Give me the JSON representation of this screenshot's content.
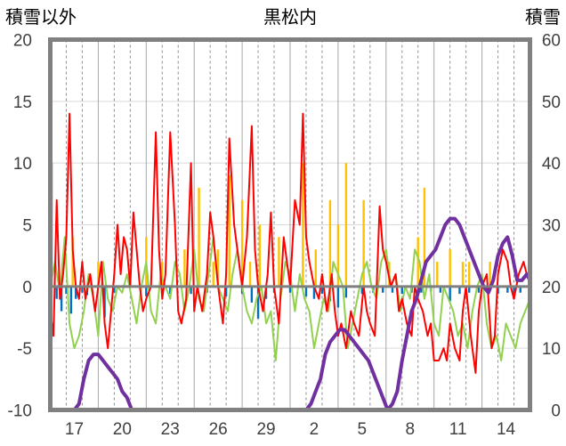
{
  "chart_data": {
    "type": "bar",
    "title": "黒松内",
    "left_axis_title": "積雪以外",
    "right_axis_title": "積雪",
    "ylim_left": [
      -10,
      20
    ],
    "ylim_right": [
      0,
      60
    ],
    "y_ticks_left": [
      "20",
      "15",
      "10",
      "5",
      "0",
      "-5",
      "-10"
    ],
    "y_ticks_right": [
      "60",
      "50",
      "40",
      "30",
      "20",
      "10",
      "0"
    ],
    "x_tick_labels": [
      "17",
      "20",
      "23",
      "26",
      "29",
      "2",
      "5",
      "8",
      "11",
      "14"
    ],
    "days": 30,
    "grid": "vertical dashed per day, solid every 3 days",
    "colors": {
      "temperature_max": "#ff0000",
      "temperature_min": "#92d050",
      "precipitation": "#ffc000",
      "temperature_anomaly": "#0070c0",
      "snow_depth": "#7030a0",
      "zero_line": "#7f7f7f",
      "frame": "#808080"
    },
    "series": [
      {
        "id": "precip",
        "kind": "bar",
        "axis": "left",
        "x": [
          0.1,
          1.4,
          3.0,
          6.0,
          7.0,
          8.4,
          9.3,
          10.2,
          10.5,
          11.2,
          12.0,
          12.5,
          13.1,
          14.3,
          15.8,
          16.6,
          17.5,
          18.0,
          18.5,
          19.6,
          21.2,
          23.0,
          23.4,
          24.2,
          25.0,
          25.8,
          26.2,
          27.5
        ],
        "values": [
          10,
          4,
          2,
          4,
          2,
          3,
          8,
          2,
          3,
          9,
          7,
          2,
          5,
          4,
          10,
          3,
          7,
          5,
          10,
          7,
          2,
          4,
          8,
          2,
          3,
          2,
          2,
          2
        ]
      },
      {
        "id": "anomaly",
        "kind": "bar",
        "axis": "left",
        "x": [
          0.4,
          0.7,
          1.0,
          1.3,
          1.6,
          2.0,
          2.3,
          3.4,
          4.0,
          6.0,
          7.5,
          8.8,
          9.8,
          11.0,
          12.0,
          12.6,
          13.0,
          13.5,
          14.0,
          15.0,
          16.0,
          16.5,
          17.0,
          17.5,
          18.0,
          18.5,
          19.5,
          20.2,
          20.8,
          21.4,
          22.0,
          22.6,
          23.2,
          23.8,
          24.4,
          25.0,
          25.6,
          26.2,
          26.8,
          27.4,
          28.0,
          28.6,
          29.0,
          29.4
        ],
        "values": [
          -1,
          -2,
          -0.6,
          -2.2,
          -1,
          -0.5,
          -0.7,
          -2.5,
          -0.5,
          -0.8,
          -0.6,
          -0.6,
          -0.5,
          -0.8,
          -0.6,
          -1.3,
          -2.6,
          -1,
          -0.5,
          -0.5,
          -0.8,
          -1,
          -0.6,
          -1.2,
          -1.7,
          -0.9,
          -0.6,
          -0.5,
          -0.5,
          -0.5,
          -0.6,
          -0.5,
          -0.5,
          -0.4,
          -0.5,
          -1.2,
          -0.6,
          -0.5,
          -0.5,
          -0.4,
          -0.6,
          -0.5,
          -1,
          -0.5
        ]
      },
      {
        "id": "tmin",
        "kind": "line",
        "axis": "left",
        "x": [
          0,
          0.3,
          0.6,
          0.9,
          1.2,
          1.5,
          1.8,
          2.1,
          2.4,
          2.7,
          3.0,
          3.3,
          3.6,
          3.9,
          4.2,
          4.5,
          4.8,
          5.1,
          5.4,
          5.7,
          6.0,
          6.3,
          6.6,
          6.9,
          7.2,
          7.5,
          7.8,
          8.1,
          8.4,
          8.7,
          9.0,
          9.3,
          9.6,
          9.9,
          10.2,
          10.5,
          10.8,
          11.1,
          11.4,
          11.7,
          12.0,
          12.3,
          12.6,
          12.9,
          13.2,
          13.5,
          13.8,
          14.1,
          14.4,
          14.7,
          15.0,
          15.3,
          15.6,
          15.9,
          16.2,
          16.5,
          16.8,
          17.1,
          17.4,
          17.7,
          18.0,
          18.3,
          18.6,
          18.9,
          19.2,
          19.5,
          19.8,
          20.1,
          20.4,
          20.7,
          21.0,
          21.3,
          21.6,
          21.9,
          22.2,
          22.5,
          22.8,
          23.1,
          23.4,
          23.7,
          24.0,
          24.3,
          24.6,
          24.9,
          25.2,
          25.5,
          25.8,
          26.1,
          26.4,
          26.7,
          27.0,
          27.3,
          27.6,
          27.9,
          28.2,
          28.5,
          28.8,
          29.1,
          29.4,
          29.7,
          30.0
        ],
        "values": [
          0,
          2,
          -0.5,
          4,
          -3,
          -5,
          -4,
          -2,
          1,
          -1,
          -4,
          2,
          -1,
          -2,
          0,
          -0.5,
          1,
          -1,
          -3,
          0,
          2,
          -2,
          -3,
          1,
          0,
          -1,
          2,
          1,
          -2,
          0,
          3,
          -1,
          -2,
          1,
          4,
          0,
          -1,
          -2,
          1,
          3,
          0,
          -2,
          -3,
          -1,
          0,
          -3,
          -2,
          -6,
          -1,
          2,
          1,
          -2,
          1,
          -1,
          -2,
          -5,
          -3,
          -1,
          -2,
          2,
          1,
          0,
          -5,
          -3,
          -1,
          1,
          2,
          0,
          -1,
          2,
          3,
          0,
          1,
          -2,
          0,
          -1,
          3,
          2,
          -1,
          1,
          -3,
          -4,
          0,
          -1,
          -2,
          -4,
          -3,
          -5,
          -2,
          0,
          1,
          -3,
          -5,
          -4,
          -6,
          -3,
          -4,
          -5,
          -3,
          -2,
          -1
        ]
      },
      {
        "id": "tmax",
        "kind": "line",
        "axis": "left",
        "x": [
          0,
          0.2,
          0.4,
          0.6,
          0.8,
          1.0,
          1.2,
          1.4,
          1.6,
          1.8,
          2.0,
          2.2,
          2.5,
          2.8,
          3.0,
          3.2,
          3.4,
          3.6,
          3.8,
          4.0,
          4.2,
          4.4,
          4.6,
          4.8,
          5.0,
          5.2,
          5.4,
          5.6,
          5.8,
          6.0,
          6.3,
          6.6,
          6.8,
          7.0,
          7.2,
          7.5,
          7.8,
          8.0,
          8.2,
          8.5,
          8.8,
          9.0,
          9.2,
          9.5,
          9.8,
          10.0,
          10.2,
          10.5,
          10.8,
          11.0,
          11.2,
          11.5,
          11.8,
          12.0,
          12.3,
          12.6,
          12.8,
          13.0,
          13.3,
          13.6,
          13.8,
          14.0,
          14.3,
          14.6,
          14.8,
          15.0,
          15.3,
          15.6,
          15.8,
          16.0,
          16.2,
          16.5,
          16.8,
          17.0,
          17.3,
          17.6,
          17.8,
          18.0,
          18.2,
          18.5,
          18.8,
          19.0,
          19.3,
          19.6,
          19.8,
          20.0,
          20.3,
          20.6,
          20.8,
          21.0,
          21.3,
          21.6,
          21.8,
          22.0,
          22.3,
          22.6,
          22.8,
          23.0,
          23.3,
          23.6,
          23.8,
          24.0,
          24.3,
          24.6,
          24.8,
          25.0,
          25.3,
          25.6,
          25.8,
          26.0,
          26.3,
          26.6,
          26.8,
          27.0,
          27.3,
          27.6,
          27.8,
          28.0,
          28.3,
          28.6,
          28.8,
          29.0,
          29.3,
          29.6,
          29.8,
          30.0
        ],
        "values": [
          -2,
          -4,
          7,
          -1,
          1,
          4,
          14,
          3,
          0,
          -1,
          2,
          -1,
          1,
          -2,
          0,
          2,
          -3,
          -5,
          -2,
          1,
          5,
          1,
          4,
          3,
          0,
          6,
          3,
          0,
          -2,
          -1,
          0,
          12.5,
          3,
          -1,
          1,
          12.5,
          5,
          -2,
          -3,
          -1,
          10,
          -2,
          0,
          -2,
          1,
          6,
          4,
          0,
          -3,
          1,
          12,
          5,
          2,
          0,
          4,
          13,
          3,
          0,
          -2,
          1,
          6,
          0,
          -3,
          4,
          2,
          0,
          7,
          5,
          14,
          4,
          2,
          0,
          -1,
          1,
          -2,
          1,
          -2,
          -4,
          -3,
          -5,
          -2,
          -3,
          -4,
          0,
          -2,
          -3,
          -4,
          6.5,
          3,
          2,
          0,
          1,
          -2,
          -1,
          -3,
          -4,
          0,
          -1,
          -2,
          -4,
          -3,
          -6,
          -6,
          -5,
          -6,
          -3,
          -5,
          -6,
          -2,
          0,
          -4,
          -7,
          -2,
          0,
          1,
          -5,
          -4,
          1,
          3,
          2,
          0,
          -1,
          1,
          2,
          1,
          0.5
        ]
      },
      {
        "id": "snow",
        "kind": "line",
        "axis": "right",
        "x": [
          0,
          1.5,
          1.8,
          2.1,
          2.4,
          2.7,
          3.0,
          3.3,
          3.6,
          3.9,
          4.2,
          4.5,
          4.8,
          5.1,
          5.4,
          5.7,
          6.0,
          16.0,
          16.3,
          16.6,
          16.9,
          17.2,
          17.5,
          17.8,
          18.1,
          18.4,
          18.7,
          19.0,
          19.3,
          19.6,
          19.9,
          20.2,
          20.5,
          20.8,
          21.1,
          21.4,
          21.7,
          22.0,
          22.3,
          22.6,
          22.9,
          23.2,
          23.5,
          23.8,
          24.1,
          24.4,
          24.7,
          25.0,
          25.3,
          25.6,
          25.9,
          26.2,
          26.5,
          26.8,
          27.1,
          27.4,
          27.7,
          28.0,
          28.3,
          28.6,
          28.9,
          29.2,
          29.5,
          29.8,
          30.0
        ],
        "values": [
          0,
          0,
          1,
          5,
          8,
          9,
          9,
          8,
          7,
          6,
          5,
          3,
          2,
          0,
          0,
          0,
          0,
          0,
          1,
          3,
          5,
          9,
          11,
          12,
          13,
          13,
          12,
          11,
          10,
          9,
          8,
          6,
          4,
          2,
          0,
          1,
          3,
          8,
          12,
          16,
          18,
          21,
          24,
          25,
          26,
          28,
          30,
          31,
          31,
          30,
          28,
          26,
          24,
          22,
          20,
          19,
          21,
          25,
          27,
          28,
          25,
          21,
          21,
          22,
          21
        ]
      }
    ]
  }
}
